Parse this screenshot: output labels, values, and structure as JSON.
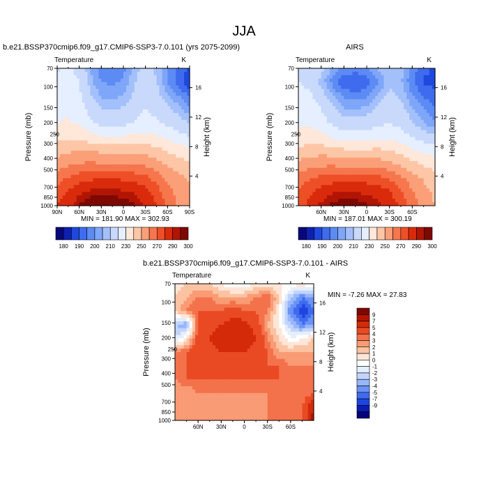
{
  "figure": {
    "title": "JJA",
    "stats_model": "MIN = 181.90  MAX = 302.93",
    "stats_obs": "MIN = 187.01  MAX = 300.19",
    "stats_diff": "MIN =  -7.26  MAX =  27.83"
  },
  "colors": {
    "abs_scale": [
      "#08087a",
      "#0f1fb0",
      "#1f48de",
      "#3f6bee",
      "#5d8bf4",
      "#7fa6f8",
      "#a3c0fb",
      "#c8d9fc",
      "#e5efff",
      "#ffe7d9",
      "#fdc6a6",
      "#fb9f78",
      "#f6764d",
      "#ee4f27",
      "#d92b0c",
      "#b11504",
      "#7d0900"
    ],
    "diff_scale": [
      "#04047a",
      "#0a1eb4",
      "#1f45e0",
      "#3f6bef",
      "#6a92f7",
      "#97b6fb",
      "#c2d4fd",
      "#e4eeff",
      "#ffffff",
      "#ffe6d8",
      "#fcc3a3",
      "#f99b74",
      "#f3724b",
      "#ea4a23",
      "#d42a0a",
      "#b21503",
      "#7e0800"
    ]
  },
  "chart_data": [
    {
      "type": "heatmap",
      "subtitle": "b.e21.BSSP370cmip6.f09_g17.CMIP6-SSP3-7.0.101 (yrs 2075-2099)",
      "variable_label": "Temperature",
      "unit_label": "K",
      "ylabel": "Pressure (mb)",
      "y2label": "Height (km)",
      "x_ticks": [
        "90N",
        "60N",
        "30N",
        "0",
        "30S",
        "60S",
        "90S"
      ],
      "x_tick_lat": [
        90,
        60,
        30,
        0,
        -30,
        -60,
        -90
      ],
      "xlim": [
        90,
        -90
      ],
      "y_ticks": [
        70,
        100,
        150,
        200,
        250,
        300,
        400,
        500,
        700,
        850,
        1000
      ],
      "ylim": [
        70,
        1000
      ],
      "y2_ticks": [
        4,
        8,
        12,
        16
      ],
      "colorbar_labels": [
        "180",
        "190",
        "200",
        "210",
        "230",
        "250",
        "270",
        "290",
        "300"
      ],
      "min": 181.9,
      "max": 302.93,
      "field": [
        [
          218,
          222,
          216,
          205,
          197,
          196,
          198,
          207,
          213,
          209,
          201,
          194,
          188
        ],
        [
          222,
          226,
          220,
          207,
          200,
          199,
          201,
          209,
          215,
          210,
          200,
          192,
          186
        ],
        [
          224,
          227,
          222,
          211,
          204,
          203,
          205,
          212,
          217,
          213,
          206,
          200,
          194
        ],
        [
          227,
          229,
          225,
          216,
          210,
          209,
          211,
          216,
          220,
          217,
          212,
          207,
          202
        ],
        [
          230,
          231,
          229,
          222,
          217,
          216,
          218,
          221,
          224,
          222,
          218,
          214,
          210
        ],
        [
          236,
          238,
          238,
          234,
          231,
          230,
          231,
          233,
          233,
          231,
          227,
          224,
          220
        ],
        [
          246,
          248,
          250,
          249,
          248,
          247,
          248,
          248,
          246,
          243,
          239,
          236,
          233
        ],
        [
          255,
          258,
          261,
          262,
          261,
          261,
          261,
          260,
          258,
          254,
          249,
          245,
          242
        ],
        [
          266,
          271,
          276,
          278,
          279,
          279,
          278,
          276,
          273,
          266,
          258,
          253,
          249
        ],
        [
          274,
          281,
          288,
          292,
          293,
          293,
          291,
          289,
          284,
          275,
          264,
          256,
          251
        ],
        [
          280,
          287,
          296,
          301,
          302,
          302,
          299,
          296,
          290,
          281,
          268,
          258,
          252
        ]
      ]
    },
    {
      "type": "heatmap",
      "subtitle": "AIRS",
      "variable_label": "Temperature",
      "unit_label": "K",
      "ylabel": "Pressure (mb)",
      "y2label": "Height (km)",
      "x_ticks": [
        "60N",
        "30N",
        "0",
        "30S",
        "60S"
      ],
      "x_tick_lat": [
        60,
        30,
        0,
        -30,
        -60
      ],
      "xlim": [
        90,
        -90
      ],
      "y_ticks": [
        70,
        100,
        150,
        200,
        250,
        300,
        400,
        500,
        700,
        850,
        1000
      ],
      "ylim": [
        70,
        1000
      ],
      "y2_ticks": [
        4,
        8,
        12,
        16
      ],
      "colorbar_labels": [
        "180",
        "190",
        "200",
        "210",
        "230",
        "250",
        "270",
        "290",
        "300"
      ],
      "min": 187.01,
      "max": 300.19,
      "field": [
        [
          217,
          219,
          212,
          204,
          199,
          198,
          200,
          205,
          210,
          207,
          198,
          192,
          189
        ],
        [
          220,
          218,
          208,
          198,
          191,
          189,
          192,
          200,
          208,
          206,
          196,
          189,
          188
        ],
        [
          222,
          222,
          214,
          205,
          199,
          197,
          199,
          206,
          212,
          209,
          200,
          194,
          192
        ],
        [
          225,
          226,
          220,
          212,
          206,
          205,
          207,
          212,
          216,
          213,
          206,
          200,
          196
        ],
        [
          228,
          229,
          225,
          218,
          214,
          213,
          214,
          218,
          220,
          217,
          211,
          205,
          201
        ],
        [
          233,
          234,
          233,
          228,
          225,
          224,
          225,
          227,
          228,
          225,
          220,
          215,
          211
        ],
        [
          243,
          245,
          246,
          244,
          242,
          241,
          242,
          242,
          241,
          237,
          232,
          228,
          225
        ],
        [
          253,
          256,
          258,
          258,
          257,
          257,
          257,
          256,
          253,
          248,
          243,
          239,
          236
        ],
        [
          264,
          269,
          273,
          275,
          276,
          276,
          275,
          273,
          269,
          262,
          255,
          249,
          245
        ],
        [
          271,
          278,
          285,
          289,
          290,
          290,
          288,
          286,
          281,
          272,
          261,
          253,
          248
        ],
        [
          276,
          283,
          292,
          297,
          299,
          299,
          296,
          293,
          287,
          278,
          266,
          256,
          250
        ]
      ]
    },
    {
      "type": "heatmap",
      "subtitle": "b.e21.BSSP370cmip6.f09_g17.CMIP6-SSP3-7.0.101 - AIRS",
      "variable_label": "Temperature",
      "unit_label": "K",
      "ylabel": "Pressure (mb)",
      "y2label": "Height (km)",
      "x_ticks": [
        "60N",
        "30N",
        "0",
        "30S",
        "60S"
      ],
      "x_tick_lat": [
        60,
        30,
        0,
        -30,
        -60
      ],
      "xlim": [
        90,
        -90
      ],
      "y_ticks": [
        70,
        100,
        150,
        200,
        250,
        300,
        400,
        500,
        700,
        850,
        1000
      ],
      "ylim": [
        70,
        1000
      ],
      "y2_ticks": [
        4,
        8,
        12,
        16
      ],
      "colorbar_labels": [
        "9",
        "7",
        "5",
        "4",
        "3",
        "2",
        "1",
        "0",
        "-1",
        "-2",
        "-3",
        "-4",
        "-5",
        "-7",
        "-9"
      ],
      "min": -7.26,
      "max": 27.83,
      "field": [
        [
          1,
          2,
          2,
          2,
          1,
          0,
          0,
          1,
          1,
          1,
          1,
          2,
          1
        ],
        [
          2,
          3,
          4,
          4,
          3,
          3,
          3,
          4,
          5,
          2,
          -2,
          -4,
          -3
        ],
        [
          2,
          4,
          5,
          5,
          5,
          6,
          5,
          5,
          4,
          1,
          -4,
          -6,
          -4
        ],
        [
          -2,
          -3,
          5,
          6,
          7,
          8,
          8,
          6,
          3,
          1,
          -2,
          -4,
          -3
        ],
        [
          -1,
          1,
          6,
          7,
          8,
          9,
          9,
          7,
          4,
          2,
          0,
          1,
          2
        ],
        [
          4,
          5,
          6,
          6,
          7,
          7,
          7,
          6,
          5,
          3,
          3,
          3,
          3
        ],
        [
          5,
          5,
          5,
          5,
          5,
          5,
          5,
          5,
          5,
          5,
          4,
          4,
          4
        ],
        [
          4,
          5,
          5,
          5,
          5,
          5,
          5,
          5,
          5,
          5,
          4,
          4,
          4
        ],
        [
          3,
          3,
          4,
          4,
          4,
          4,
          4,
          4,
          4,
          4,
          4,
          4,
          5
        ],
        [
          3,
          3,
          3,
          3,
          3,
          3,
          3,
          3,
          4,
          4,
          4,
          5,
          9
        ],
        [
          3,
          3,
          3,
          3,
          3,
          3,
          3,
          3,
          4,
          4,
          4,
          5,
          10
        ]
      ]
    }
  ]
}
